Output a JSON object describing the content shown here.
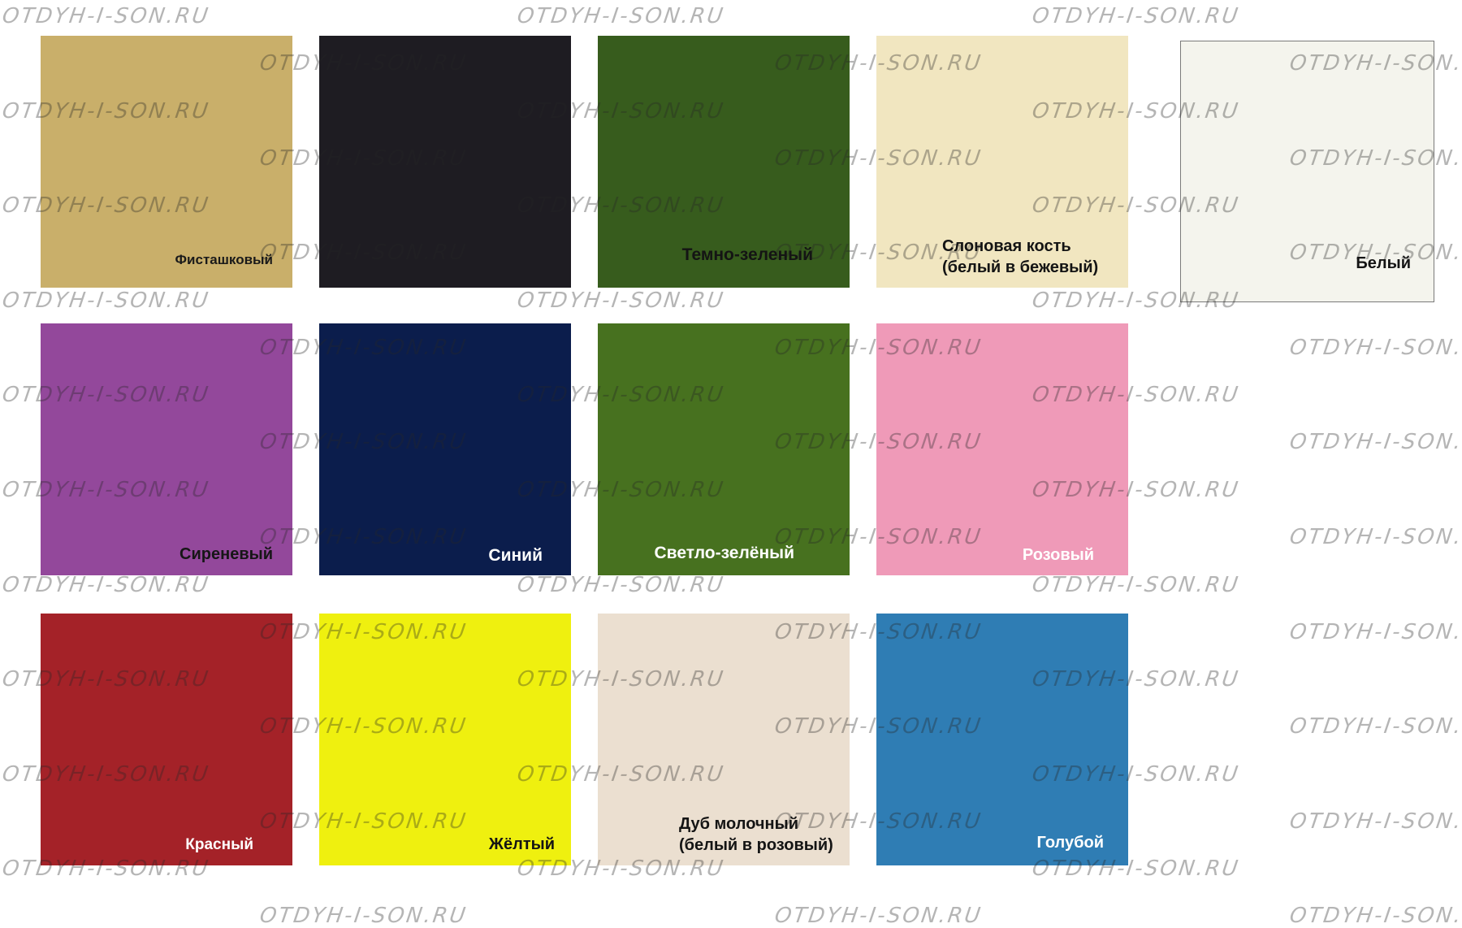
{
  "page": {
    "background": "#ffffff"
  },
  "watermark": {
    "text": "OTDYH-I-SON.RU",
    "color_hex": "#a9a9a9"
  },
  "swatches": [
    {
      "id": "pistachio",
      "label": "Фисташковый",
      "color": "#c9af6a",
      "label_color": "#1a1a1a"
    },
    {
      "id": "black",
      "label": "",
      "color": "#1e1c22",
      "label_color": "#ffffff"
    },
    {
      "id": "dark-green",
      "label": "Темно-зеленый",
      "color": "#375c1d",
      "label_color": "#141414"
    },
    {
      "id": "ivory",
      "label_lines": [
        "Слоновая кость",
        "(белый в бежевый)"
      ],
      "color": "#f1e6c0",
      "label_color": "#141414"
    },
    {
      "id": "white",
      "label": "Белый",
      "color": "#f4f4ed",
      "label_color": "#141414",
      "border_color": "#7a7a7a"
    },
    {
      "id": "lilac",
      "label": "Сиреневый",
      "color": "#93489b",
      "label_color": "#161616"
    },
    {
      "id": "navy",
      "label": "Синий",
      "color": "#0b1d4c",
      "label_color": "#ffffff"
    },
    {
      "id": "light-green",
      "label": "Светло-зелёный",
      "color": "#47711f",
      "label_color": "#ffffff"
    },
    {
      "id": "pink",
      "label": "Розовый",
      "color": "#ef9ab8",
      "label_color": "#ffffff"
    },
    {
      "id": "red",
      "label": "Красный",
      "color": "#a42228",
      "label_color": "#ffffff"
    },
    {
      "id": "yellow",
      "label": "Жёлтый",
      "color": "#eff00f",
      "label_color": "#141414"
    },
    {
      "id": "milk-oak",
      "label_lines": [
        "Дуб молочный",
        "(белый в розовый)"
      ],
      "color": "#ebdfd0",
      "label_color": "#141414"
    },
    {
      "id": "light-blue",
      "label": "Голубой",
      "color": "#2f7db4",
      "label_color": "#ffffff"
    }
  ]
}
